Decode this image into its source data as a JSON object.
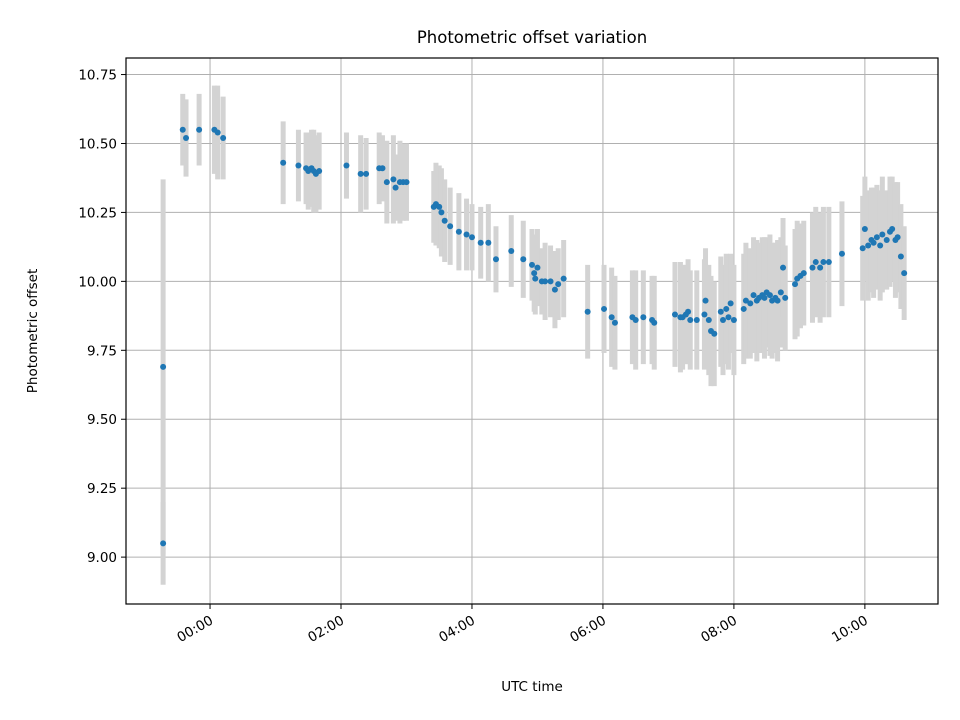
{
  "chart_data": {
    "type": "scatter",
    "title": "Photometric offset variation",
    "xlabel": "UTC time",
    "ylabel": "Photometric offset",
    "x_unit": "UTC time (HH:MM, starting previous evening)",
    "xlim": [
      "-01:17",
      "11:07"
    ],
    "ylim": [
      8.83,
      10.81
    ],
    "xticks": [
      "00:00",
      "02:00",
      "04:00",
      "06:00",
      "08:00",
      "10:00"
    ],
    "yticks": [
      "9.00",
      "9.25",
      "9.50",
      "9.75",
      "10.00",
      "10.25",
      "10.50",
      "10.75"
    ],
    "grid": true,
    "legend": "none",
    "colors": {
      "marker": "#1f77b4",
      "errorbar": "#d3d3d3",
      "grid": "#b0b0b0"
    },
    "series": [
      {
        "x": [
          "-00:43",
          "-00:43",
          "-00:25",
          "-00:22",
          "-00:10",
          "00:04",
          "00:07",
          "00:12",
          "01:07",
          "01:21",
          "01:28",
          "01:30",
          "01:33",
          "01:35",
          "01:37",
          "01:40",
          "02:05",
          "02:18",
          "02:23",
          "02:35",
          "02:38",
          "02:42",
          "02:48",
          "02:50",
          "02:54",
          "02:57",
          "03:00",
          "03:25",
          "03:27",
          "03:30",
          "03:32",
          "03:35",
          "03:40",
          "03:48",
          "03:55",
          "04:00",
          "04:08",
          "04:15",
          "04:22",
          "04:36",
          "04:47",
          "04:55",
          "04:57",
          "04:58",
          "05:00",
          "05:04",
          "05:07",
          "05:12",
          "05:16",
          "05:19",
          "05:24",
          "05:46",
          "06:01",
          "06:08",
          "06:11",
          "06:27",
          "06:30",
          "06:37",
          "06:45",
          "06:47",
          "07:06",
          "07:11",
          "07:13",
          "07:16",
          "07:18",
          "07:20",
          "07:26",
          "07:33",
          "07:34",
          "07:37",
          "07:39",
          "07:42",
          "07:48",
          "07:50",
          "07:53",
          "07:55",
          "07:57",
          "08:00",
          "08:09",
          "08:11",
          "08:15",
          "08:18",
          "08:21",
          "08:23",
          "08:26",
          "08:28",
          "08:30",
          "08:33",
          "08:35",
          "08:38",
          "08:40",
          "08:43",
          "08:45",
          "08:47",
          "08:56",
          "08:58",
          "09:01",
          "09:04",
          "09:12",
          "09:15",
          "09:19",
          "09:22",
          "09:27",
          "09:39",
          "09:58",
          "10:00",
          "10:03",
          "10:06",
          "10:08",
          "10:11",
          "10:14",
          "10:16",
          "10:20",
          "10:23",
          "10:25",
          "10:28",
          "10:30",
          "10:33",
          "10:36"
        ],
        "y": [
          9.69,
          9.05,
          10.55,
          10.52,
          10.55,
          10.55,
          10.54,
          10.52,
          10.43,
          10.42,
          10.41,
          10.4,
          10.41,
          10.4,
          10.39,
          10.4,
          10.42,
          10.39,
          10.39,
          10.41,
          10.41,
          10.36,
          10.37,
          10.34,
          10.36,
          10.36,
          10.36,
          10.27,
          10.28,
          10.27,
          10.25,
          10.22,
          10.2,
          10.18,
          10.17,
          10.16,
          10.14,
          10.14,
          10.08,
          10.11,
          10.08,
          10.06,
          10.03,
          10.01,
          10.05,
          10.0,
          10.0,
          10.0,
          9.97,
          9.99,
          10.01,
          9.89,
          9.9,
          9.87,
          9.85,
          9.87,
          9.86,
          9.87,
          9.86,
          9.85,
          9.88,
          9.87,
          9.87,
          9.88,
          9.89,
          9.86,
          9.86,
          9.88,
          9.93,
          9.86,
          9.82,
          9.81,
          9.89,
          9.86,
          9.9,
          9.87,
          9.92,
          9.86,
          9.9,
          9.93,
          9.92,
          9.95,
          9.93,
          9.94,
          9.95,
          9.94,
          9.96,
          9.95,
          9.93,
          9.94,
          9.93,
          9.96,
          10.05,
          9.94,
          9.99,
          10.01,
          10.02,
          10.03,
          10.05,
          10.07,
          10.05,
          10.07,
          10.07,
          10.1,
          10.12,
          10.19,
          10.13,
          10.15,
          10.14,
          10.16,
          10.13,
          10.17,
          10.15,
          10.18,
          10.19,
          10.15,
          10.16,
          10.09,
          10.03
        ],
        "yerr": [
          0.68,
          0.15,
          0.13,
          0.14,
          0.13,
          0.16,
          0.17,
          0.15,
          0.15,
          0.13,
          0.13,
          0.14,
          0.14,
          0.15,
          0.14,
          0.14,
          0.12,
          0.14,
          0.13,
          0.13,
          0.12,
          0.15,
          0.16,
          0.12,
          0.15,
          0.14,
          0.14,
          0.13,
          0.15,
          0.15,
          0.16,
          0.15,
          0.14,
          0.14,
          0.13,
          0.12,
          0.13,
          0.14,
          0.12,
          0.13,
          0.14,
          0.13,
          0.14,
          0.13,
          0.14,
          0.12,
          0.14,
          0.13,
          0.14,
          0.13,
          0.14,
          0.17,
          0.16,
          0.18,
          0.17,
          0.17,
          0.18,
          0.17,
          0.16,
          0.17,
          0.19,
          0.2,
          0.19,
          0.18,
          0.19,
          0.18,
          0.18,
          0.2,
          0.19,
          0.2,
          0.2,
          0.19,
          0.2,
          0.2,
          0.2,
          0.19,
          0.18,
          0.2,
          0.2,
          0.21,
          0.2,
          0.21,
          0.22,
          0.2,
          0.21,
          0.22,
          0.2,
          0.22,
          0.21,
          0.2,
          0.22,
          0.2,
          0.18,
          0.19,
          0.2,
          0.21,
          0.19,
          0.19,
          0.2,
          0.2,
          0.2,
          0.2,
          0.2,
          0.19,
          0.19,
          0.19,
          0.2,
          0.19,
          0.2,
          0.19,
          0.2,
          0.21,
          0.18,
          0.2,
          0.19,
          0.21,
          0.2,
          0.19,
          0.17
        ]
      }
    ]
  }
}
